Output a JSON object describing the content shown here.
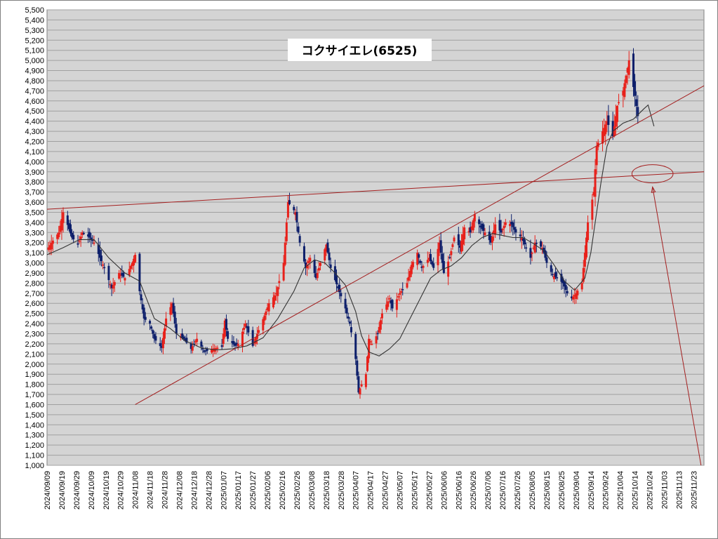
{
  "colors": {
    "plot_background": "#d4d4d4",
    "gridline": "#a0a0a0",
    "up_candle": "#e8201a",
    "down_candle": "#0d1f6b",
    "moving_average": "#333333",
    "trendline": "#a41f1f"
  },
  "chart_data": {
    "type": "candlestick",
    "title": "コクサイエレ(6525)",
    "ylim": [
      1000,
      5500
    ],
    "ytick_step": 100,
    "ytick_labels": [
      "5,500",
      "5,400",
      "5,300",
      "5,200",
      "5,100",
      "5,000",
      "4,900",
      "4,800",
      "4,700",
      "4,600",
      "4,500",
      "4,400",
      "4,300",
      "4,200",
      "4,100",
      "4,000",
      "3,900",
      "3,800",
      "3,700",
      "3,600",
      "3,500",
      "3,400",
      "3,300",
      "3,200",
      "3,100",
      "3,000",
      "2,900",
      "2,800",
      "2,700",
      "2,600",
      "2,500",
      "2,400",
      "2,300",
      "2,200",
      "2,100",
      "2,000",
      "1,900",
      "1,800",
      "1,700",
      "1,600",
      "1,500",
      "1,400",
      "1,300",
      "1,200",
      "1,100",
      "1,000"
    ],
    "x_start": "2024/09/09",
    "x_end": "2025/11/30",
    "xtick_labels": [
      "2024/09/09",
      "2024/09/19",
      "2024/09/29",
      "2024/10/09",
      "2024/10/19",
      "2024/10/29",
      "2024/11/08",
      "2024/11/18",
      "2024/11/28",
      "2024/12/08",
      "2024/12/18",
      "2024/12/28",
      "2025/01/07",
      "2025/01/17",
      "2025/01/27",
      "2025/02/06",
      "2025/02/16",
      "2025/02/26",
      "2025/03/08",
      "2025/03/18",
      "2025/03/28",
      "2025/04/07",
      "2025/04/17",
      "2025/04/27",
      "2025/05/07",
      "2025/05/17",
      "2025/05/27",
      "2025/06/06",
      "2025/06/16",
      "2025/06/26",
      "2025/07/06",
      "2025/07/16",
      "2025/07/26",
      "2025/08/05",
      "2025/08/15",
      "2025/08/25",
      "2025/09/04",
      "2025/09/14",
      "2025/09/24",
      "2025/10/04",
      "2025/10/14",
      "2025/10/24",
      "2025/11/03",
      "2025/11/13",
      "2025/11/23"
    ],
    "price_anchors": [
      [
        "2024/09/09",
        3130
      ],
      [
        "2024/09/13",
        3220
      ],
      [
        "2024/09/17",
        3300
      ],
      [
        "2024/09/20",
        3500
      ],
      [
        "2024/09/26",
        3250
      ],
      [
        "2024/09/30",
        3180
      ],
      [
        "2024/10/03",
        3300
      ],
      [
        "2024/10/08",
        3250
      ],
      [
        "2024/10/11",
        3200
      ],
      [
        "2024/10/15",
        3050
      ],
      [
        "2024/10/18",
        2950
      ],
      [
        "2024/10/23",
        2750
      ],
      [
        "2024/10/28",
        2900
      ],
      [
        "2024/11/01",
        2850
      ],
      [
        "2024/11/06",
        3000
      ],
      [
        "2024/11/08",
        3080
      ],
      [
        "2024/11/11",
        2720
      ],
      [
        "2024/11/14",
        2450
      ],
      [
        "2024/11/18",
        2400
      ],
      [
        "2024/11/21",
        2250
      ],
      [
        "2024/11/26",
        2160
      ],
      [
        "2024/11/29",
        2450
      ],
      [
        "2024/12/03",
        2600
      ],
      [
        "2024/12/06",
        2300
      ],
      [
        "2024/12/11",
        2250
      ],
      [
        "2024/12/16",
        2150
      ],
      [
        "2024/12/20",
        2250
      ],
      [
        "2024/12/25",
        2120
      ],
      [
        "2024/12/30",
        2150
      ],
      [
        "2025/01/06",
        2170
      ],
      [
        "2025/01/08",
        2430
      ],
      [
        "2025/01/10",
        2250
      ],
      [
        "2025/01/15",
        2180
      ],
      [
        "2025/01/17",
        2200
      ],
      [
        "2025/01/22",
        2400
      ],
      [
        "2025/01/27",
        2180
      ],
      [
        "2025/01/30",
        2300
      ],
      [
        "2025/02/04",
        2480
      ],
      [
        "2025/02/07",
        2600
      ],
      [
        "2025/02/12",
        2700
      ],
      [
        "2025/02/17",
        3000
      ],
      [
        "2025/02/20",
        3600
      ],
      [
        "2025/02/25",
        3500
      ],
      [
        "2025/02/28",
        3200
      ],
      [
        "2025/03/04",
        2950
      ],
      [
        "2025/03/07",
        3050
      ],
      [
        "2025/03/11",
        2850
      ],
      [
        "2025/03/14",
        3000
      ],
      [
        "2025/03/18",
        3180
      ],
      [
        "2025/03/21",
        2950
      ],
      [
        "2025/03/26",
        2750
      ],
      [
        "2025/03/31",
        2550
      ],
      [
        "2025/04/03",
        2400
      ],
      [
        "2025/04/07",
        2050
      ],
      [
        "2025/04/09",
        1720
      ],
      [
        "2025/04/11",
        1800
      ],
      [
        "2025/04/14",
        1900
      ],
      [
        "2025/04/16",
        2250
      ],
      [
        "2025/04/18",
        2200
      ],
      [
        "2025/04/22",
        2300
      ],
      [
        "2025/04/25",
        2500
      ],
      [
        "2025/04/30",
        2650
      ],
      [
        "2025/05/02",
        2550
      ],
      [
        "2025/05/07",
        2700
      ],
      [
        "2025/05/12",
        2800
      ],
      [
        "2025/05/15",
        2980
      ],
      [
        "2025/05/19",
        3100
      ],
      [
        "2025/05/22",
        2950
      ],
      [
        "2025/05/27",
        3050
      ],
      [
        "2025/05/30",
        2950
      ],
      [
        "2025/06/03",
        3200
      ],
      [
        "2025/06/06",
        2900
      ],
      [
        "2025/06/10",
        3050
      ],
      [
        "2025/06/13",
        3250
      ],
      [
        "2025/06/17",
        3150
      ],
      [
        "2025/06/20",
        3350
      ],
      [
        "2025/06/24",
        3300
      ],
      [
        "2025/06/27",
        3480
      ],
      [
        "2025/07/01",
        3350
      ],
      [
        "2025/07/04",
        3300
      ],
      [
        "2025/07/08",
        3200
      ],
      [
        "2025/07/11",
        3380
      ],
      [
        "2025/07/15",
        3300
      ],
      [
        "2025/07/18",
        3400
      ],
      [
        "2025/07/22",
        3380
      ],
      [
        "2025/07/25",
        3300
      ],
      [
        "2025/07/29",
        3250
      ],
      [
        "2025/08/01",
        3150
      ],
      [
        "2025/08/04",
        3050
      ],
      [
        "2025/08/07",
        3200
      ],
      [
        "2025/08/12",
        3150
      ],
      [
        "2025/08/15",
        3000
      ],
      [
        "2025/08/19",
        2880
      ],
      [
        "2025/08/22",
        2850
      ],
      [
        "2025/08/26",
        2800
      ],
      [
        "2025/08/29",
        2700
      ],
      [
        "2025/09/01",
        2650
      ],
      [
        "2025/09/04",
        2700
      ],
      [
        "2025/09/08",
        2800
      ],
      [
        "2025/09/10",
        3100
      ],
      [
        "2025/09/12",
        3400
      ],
      [
        "2025/09/16",
        3700
      ],
      [
        "2025/09/18",
        4150
      ],
      [
        "2025/09/22",
        4300
      ],
      [
        "2025/09/25",
        4400
      ],
      [
        "2025/09/29",
        4250
      ],
      [
        "2025/10/02",
        4550
      ],
      [
        "2025/10/06",
        4700
      ],
      [
        "2025/10/08",
        4850
      ],
      [
        "2025/10/10",
        5000
      ],
      [
        "2025/10/14",
        4650
      ],
      [
        "2025/10/16",
        4450
      ]
    ],
    "moving_average": [
      [
        "2024/09/09",
        3080
      ],
      [
        "2024/09/20",
        3150
      ],
      [
        "2024/10/01",
        3230
      ],
      [
        "2024/10/11",
        3230
      ],
      [
        "2024/10/21",
        3050
      ],
      [
        "2024/11/01",
        2900
      ],
      [
        "2024/11/11",
        2820
      ],
      [
        "2024/11/21",
        2450
      ],
      [
        "2024/12/02",
        2350
      ],
      [
        "2024/12/12",
        2230
      ],
      [
        "2024/12/23",
        2160
      ],
      [
        "2025/01/02",
        2140
      ],
      [
        "2025/01/13",
        2150
      ],
      [
        "2025/01/23",
        2180
      ],
      [
        "2025/02/03",
        2260
      ],
      [
        "2025/02/13",
        2450
      ],
      [
        "2025/02/24",
        2720
      ],
      [
        "2025/03/03",
        2950
      ],
      [
        "2025/03/10",
        3030
      ],
      [
        "2025/03/17",
        3000
      ],
      [
        "2025/03/24",
        2900
      ],
      [
        "2025/03/31",
        2780
      ],
      [
        "2025/04/07",
        2520
      ],
      [
        "2025/04/11",
        2280
      ],
      [
        "2025/04/16",
        2120
      ],
      [
        "2025/04/23",
        2080
      ],
      [
        "2025/04/30",
        2150
      ],
      [
        "2025/05/07",
        2250
      ],
      [
        "2025/05/14",
        2450
      ],
      [
        "2025/05/21",
        2650
      ],
      [
        "2025/05/28",
        2850
      ],
      [
        "2025/06/04",
        2930
      ],
      [
        "2025/06/11",
        2970
      ],
      [
        "2025/06/18",
        3050
      ],
      [
        "2025/06/25",
        3170
      ],
      [
        "2025/07/02",
        3250
      ],
      [
        "2025/07/09",
        3290
      ],
      [
        "2025/07/16",
        3270
      ],
      [
        "2025/07/23",
        3250
      ],
      [
        "2025/07/30",
        3250
      ],
      [
        "2025/08/06",
        3190
      ],
      [
        "2025/08/13",
        3120
      ],
      [
        "2025/08/20",
        2980
      ],
      [
        "2025/08/27",
        2820
      ],
      [
        "2025/09/03",
        2730
      ],
      [
        "2025/09/10",
        2850
      ],
      [
        "2025/09/14",
        3100
      ],
      [
        "2025/09/17",
        3400
      ],
      [
        "2025/09/21",
        3800
      ],
      [
        "2025/09/25",
        4150
      ],
      [
        "2025/09/29",
        4300
      ],
      [
        "2025/10/06",
        4380
      ],
      [
        "2025/10/13",
        4420
      ],
      [
        "2025/10/20",
        4520
      ],
      [
        "2025/10/23",
        4560
      ],
      [
        "2025/10/27",
        4350
      ]
    ],
    "trendlines": [
      {
        "from": [
          "2024/09/09",
          3530
        ],
        "to": [
          "2025/11/30",
          3900
        ]
      },
      {
        "from": [
          "2024/11/08",
          1600
        ],
        "to": [
          "2025/11/30",
          4750
        ]
      },
      {
        "from": [
          "2025/11/28",
          1000
        ],
        "to": [
          "2025/10/26",
          3750
        ],
        "arrow": true
      }
    ],
    "ellipse": {
      "center": [
        "2025/10/26",
        3880
      ],
      "date_radius_days": 14,
      "price_radius": 90
    }
  }
}
